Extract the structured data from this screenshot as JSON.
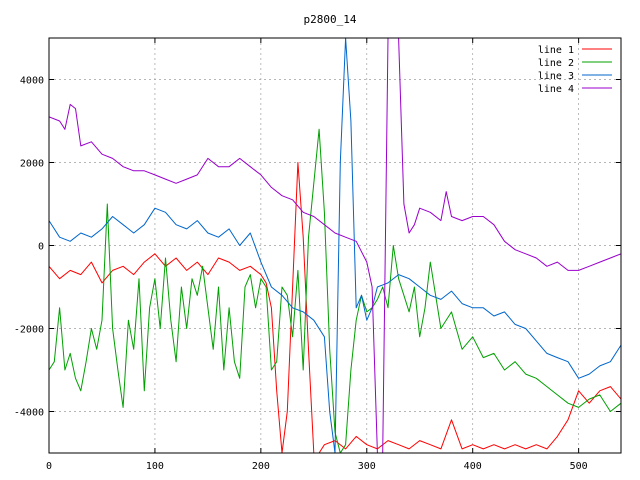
{
  "chart_data": {
    "type": "line",
    "title": "p2800_14",
    "xlim": [
      0,
      540
    ],
    "ylim": [
      -5000,
      5000
    ],
    "x_ticks": [
      0,
      100,
      200,
      300,
      400,
      500
    ],
    "y_ticks": [
      -4000,
      -2000,
      0,
      2000,
      4000
    ],
    "grid": true,
    "legend_position": "top-right",
    "series": [
      {
        "name": "line 1",
        "color": "#ff0000",
        "x": [
          0,
          10,
          20,
          30,
          40,
          50,
          60,
          70,
          80,
          90,
          100,
          110,
          120,
          130,
          140,
          150,
          160,
          170,
          180,
          190,
          200,
          205,
          210,
          215,
          220,
          225,
          230,
          235,
          240,
          245,
          250,
          255,
          260,
          270,
          280,
          290,
          300,
          310,
          320,
          330,
          340,
          350,
          360,
          370,
          380,
          390,
          400,
          410,
          420,
          430,
          440,
          450,
          460,
          470,
          480,
          490,
          500,
          510,
          520,
          530,
          540
        ],
        "y": [
          -500,
          -800,
          -600,
          -700,
          -400,
          -900,
          -600,
          -500,
          -700,
          -400,
          -200,
          -500,
          -300,
          -600,
          -400,
          -700,
          -300,
          -400,
          -600,
          -500,
          -700,
          -900,
          -1500,
          -3500,
          -5000,
          -4000,
          -1000,
          2000,
          200,
          -2500,
          -5000,
          -5000,
          -4800,
          -4700,
          -4900,
          -4600,
          -4800,
          -4900,
          -4700,
          -4800,
          -4900,
          -4700,
          -4800,
          -4900,
          -4200,
          -4900,
          -4800,
          -4900,
          -4800,
          -4900,
          -4800,
          -4900,
          -4800,
          -4900,
          -4600,
          -4200,
          -3500,
          -3800,
          -3500,
          -3400,
          -3700
        ]
      },
      {
        "name": "line 2",
        "color": "#00a000",
        "x": [
          0,
          5,
          10,
          15,
          20,
          25,
          30,
          35,
          40,
          45,
          50,
          55,
          60,
          65,
          70,
          75,
          80,
          85,
          90,
          95,
          100,
          105,
          110,
          115,
          120,
          125,
          130,
          135,
          140,
          145,
          150,
          155,
          160,
          165,
          170,
          175,
          180,
          185,
          190,
          195,
          200,
          205,
          210,
          215,
          220,
          225,
          230,
          235,
          240,
          245,
          250,
          255,
          260,
          265,
          270,
          275,
          280,
          285,
          290,
          295,
          300,
          305,
          310,
          315,
          320,
          325,
          330,
          335,
          340,
          345,
          350,
          355,
          360,
          370,
          380,
          390,
          400,
          410,
          420,
          430,
          440,
          450,
          460,
          470,
          480,
          490,
          500,
          510,
          520,
          530,
          540
        ],
        "y": [
          -3000,
          -2800,
          -1500,
          -3000,
          -2600,
          -3200,
          -3500,
          -2800,
          -2000,
          -2500,
          -1800,
          1000,
          -2000,
          -3000,
          -3900,
          -1800,
          -2500,
          -800,
          -3500,
          -1500,
          -800,
          -2000,
          -300,
          -1800,
          -2800,
          -1000,
          -2000,
          -800,
          -1200,
          -500,
          -1500,
          -2500,
          -1000,
          -3000,
          -1500,
          -2800,
          -3200,
          -1000,
          -700,
          -1500,
          -800,
          -1000,
          -3000,
          -2800,
          -1000,
          -1200,
          -2200,
          -600,
          -3000,
          200,
          1500,
          2800,
          800,
          -2500,
          -4500,
          -5000,
          -4800,
          -3000,
          -1800,
          -1200,
          -1600,
          -1500,
          -1300,
          -1000,
          -1500,
          0,
          -800,
          -1200,
          -1600,
          -1000,
          -2200,
          -1500,
          -400,
          -2000,
          -1600,
          -2500,
          -2200,
          -2700,
          -2600,
          -3000,
          -2800,
          -3100,
          -3200,
          -3400,
          -3600,
          -3800,
          -3900,
          -3700,
          -3600,
          -4000,
          -3800
        ]
      },
      {
        "name": "line 3",
        "color": "#0066cc",
        "x": [
          0,
          10,
          20,
          30,
          40,
          50,
          60,
          70,
          80,
          90,
          100,
          110,
          120,
          130,
          140,
          150,
          160,
          170,
          180,
          190,
          200,
          210,
          220,
          230,
          240,
          250,
          260,
          265,
          270,
          275,
          280,
          285,
          290,
          295,
          300,
          305,
          310,
          320,
          330,
          340,
          350,
          360,
          370,
          380,
          390,
          400,
          410,
          420,
          430,
          440,
          450,
          460,
          470,
          480,
          490,
          500,
          510,
          520,
          530,
          540
        ],
        "y": [
          600,
          200,
          100,
          300,
          200,
          400,
          700,
          500,
          300,
          500,
          900,
          800,
          500,
          400,
          600,
          300,
          200,
          400,
          0,
          300,
          -400,
          -1000,
          -1200,
          -1500,
          -1600,
          -1800,
          -2200,
          -4000,
          -5000,
          2000,
          5000,
          3000,
          -1500,
          -1200,
          -1800,
          -1500,
          -1000,
          -900,
          -700,
          -800,
          -1000,
          -1200,
          -1300,
          -1100,
          -1400,
          -1500,
          -1500,
          -1700,
          -1600,
          -1900,
          -2000,
          -2300,
          -2600,
          -2700,
          -2800,
          -3200,
          -3100,
          -2900,
          -2800,
          -2400
        ]
      },
      {
        "name": "line 4",
        "color": "#9900cc",
        "x": [
          0,
          10,
          15,
          20,
          25,
          30,
          40,
          50,
          60,
          70,
          80,
          90,
          100,
          110,
          120,
          130,
          140,
          150,
          160,
          170,
          180,
          190,
          200,
          210,
          220,
          230,
          240,
          250,
          260,
          270,
          280,
          290,
          300,
          305,
          310,
          315,
          320,
          325,
          330,
          335,
          340,
          345,
          350,
          360,
          370,
          375,
          380,
          390,
          400,
          410,
          420,
          430,
          440,
          450,
          460,
          470,
          480,
          490,
          500,
          510,
          520,
          530,
          540
        ],
        "y": [
          3100,
          3000,
          2800,
          3400,
          3300,
          2400,
          2500,
          2200,
          2100,
          1900,
          1800,
          1800,
          1700,
          1600,
          1500,
          1600,
          1700,
          2100,
          1900,
          1900,
          2100,
          1900,
          1700,
          1400,
          1200,
          1100,
          800,
          700,
          500,
          300,
          200,
          100,
          -400,
          -1000,
          -5000,
          -5000,
          5000,
          5000,
          5000,
          1000,
          300,
          500,
          900,
          800,
          600,
          1300,
          700,
          600,
          700,
          700,
          500,
          100,
          -100,
          -200,
          -300,
          -500,
          -400,
          -600,
          -600,
          -500,
          -400,
          -300,
          -200
        ]
      }
    ]
  }
}
